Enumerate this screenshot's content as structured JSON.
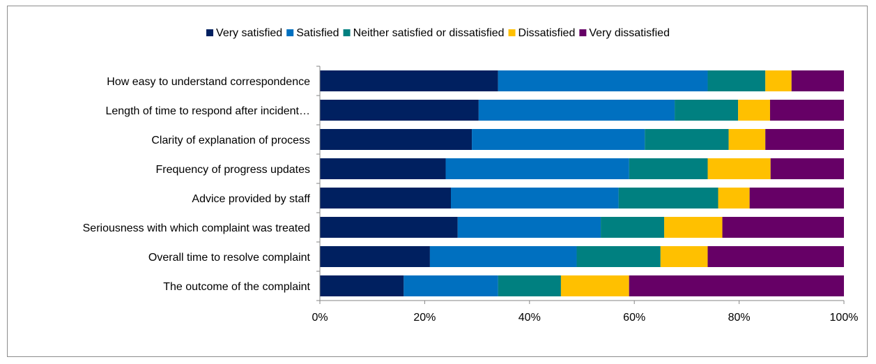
{
  "chart_data": {
    "type": "bar",
    "orientation": "horizontal",
    "stacked": true,
    "percent": true,
    "categories": [
      "How easy to understand correspondence",
      "Length of time to respond after incident…",
      "Clarity of explanation of process",
      "Frequency of progress updates",
      "Advice provided by staff",
      "Seriousness with which complaint was treated",
      "Overall time to resolve complaint",
      "The outcome of the complaint"
    ],
    "series": [
      {
        "name": "Very satisfied",
        "color": "#002060",
        "values": [
          34,
          30.3,
          29,
          24,
          25,
          26.3,
          21,
          16
        ]
      },
      {
        "name": "Satisfied",
        "color": "#0070c0",
        "values": [
          40,
          37.4,
          33,
          35,
          32,
          27.3,
          28,
          18
        ]
      },
      {
        "name": "Neither satisfied or dissatisfied",
        "color": "#008080",
        "values": [
          11,
          12.1,
          16,
          15,
          19,
          12.1,
          16,
          12
        ]
      },
      {
        "name": "Dissatisfied",
        "color": "#ffc000",
        "values": [
          5,
          6.1,
          7,
          12,
          6,
          11.1,
          9,
          13
        ]
      },
      {
        "name": "Very dissatisfied",
        "color": "#660066",
        "values": [
          10,
          14.1,
          15,
          14,
          18,
          23.2,
          26,
          41
        ]
      }
    ],
    "xticks": [
      "0%",
      "20%",
      "40%",
      "60%",
      "80%",
      "100%"
    ],
    "xlim": [
      0,
      100
    ],
    "legend_position": "top",
    "grid": false
  }
}
